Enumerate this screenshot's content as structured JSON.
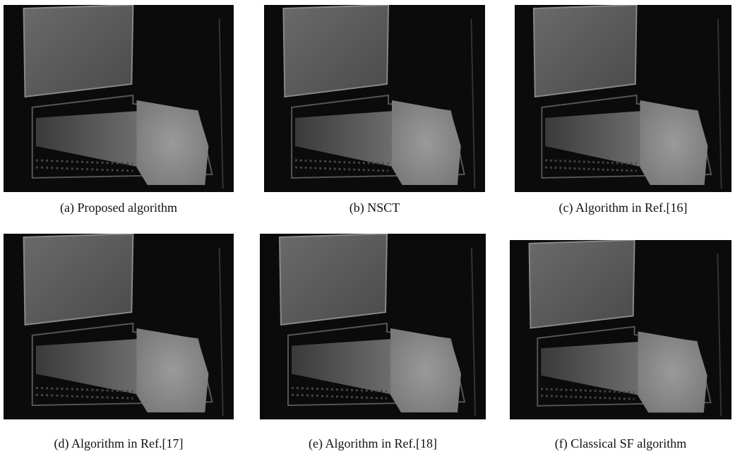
{
  "figure": {
    "panels": [
      {
        "caption": "(a) Proposed algorithm"
      },
      {
        "caption": "(b) NSCT"
      },
      {
        "caption": "(c) Algorithm in Ref.[16]"
      },
      {
        "caption": "(d) Algorithm in Ref.[17]"
      },
      {
        "caption": "(e) Algorithm in Ref.[18]"
      },
      {
        "caption": "(f) Classical SF algorithm"
      }
    ]
  }
}
